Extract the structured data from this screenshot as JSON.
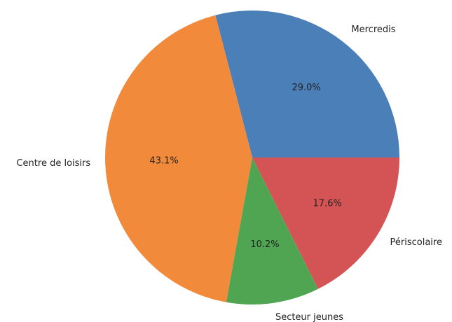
{
  "chart_data": {
    "type": "pie",
    "categories": [
      "Mercredis",
      "Centre de loisirs",
      "Secteur jeunes",
      "Périscolaire"
    ],
    "values": [
      29.0,
      43.1,
      10.2,
      17.6
    ],
    "value_labels": [
      "29.0%",
      "43.1%",
      "10.2%",
      "17.6%"
    ],
    "colors": [
      "#4a7fb8",
      "#f28a3c",
      "#4fa552",
      "#d45455"
    ]
  }
}
